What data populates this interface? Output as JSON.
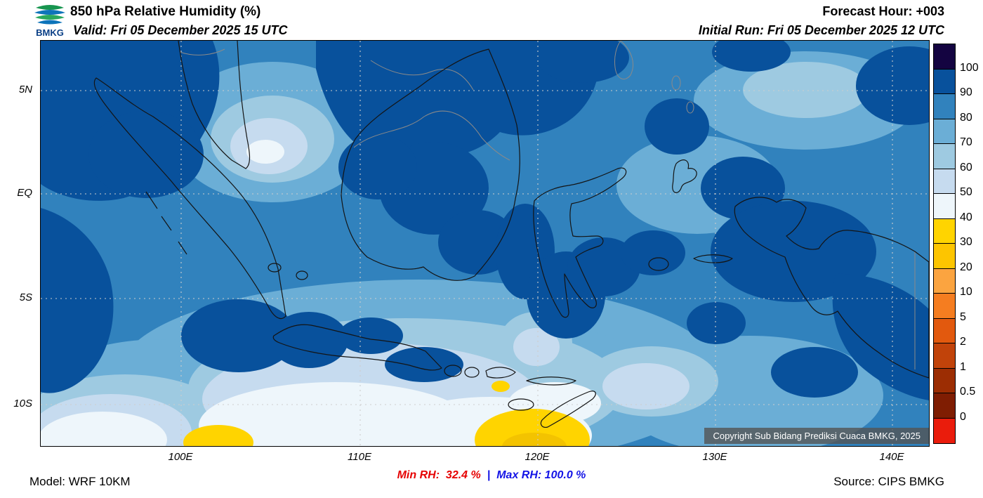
{
  "header": {
    "logo_text": "BMKG",
    "title": "850 hPa Relative Humidity (%)",
    "valid": "Valid: Fri 05 December 2025 15 UTC",
    "forecast_hour": "Forecast Hour: +003",
    "initial_run": "Initial Run: Fri 05 December 2025 12 UTC"
  },
  "map": {
    "x_axis_labels": [
      "100E",
      "110E",
      "120E",
      "130E",
      "140E"
    ],
    "y_axis_labels": [
      "5N",
      "EQ",
      "5S",
      "10S"
    ],
    "copyright": "Copyright Sub Bidang Prediksi Cuaca BMKG, 2025"
  },
  "colorbar": {
    "labels": [
      "100",
      "90",
      "80",
      "70",
      "60",
      "50",
      "40",
      "30",
      "20",
      "10",
      "5",
      "2",
      "1",
      "0.5",
      "0"
    ],
    "colors": [
      "#140441",
      "#08519c",
      "#3182bd",
      "#6baed6",
      "#9ecae1",
      "#c6dbef",
      "#eef6fb",
      "#ffd400",
      "#fdc500",
      "#fba440",
      "#f57d20",
      "#e2590e",
      "#c1430a",
      "#9c2d03",
      "#7f1d02",
      "#ea1c0c"
    ]
  },
  "footer": {
    "model": "Model: WRF 10KM",
    "min_rh": "Min RH:  32.4 %",
    "separator": "|",
    "max_rh": "Max RH: 100.0 %",
    "source": "Source: CIPS BMKG",
    "min_color": "#e60000",
    "max_color": "#1414e6"
  }
}
